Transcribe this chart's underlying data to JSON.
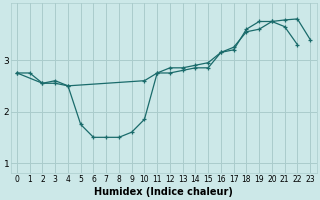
{
  "xlabel": "Humidex (Indice chaleur)",
  "background_color": "#cce8e8",
  "grid_color": "#aacccc",
  "line_color": "#1a6b6b",
  "xlim": [
    -0.5,
    23.5
  ],
  "ylim": [
    0.8,
    4.1
  ],
  "yticks": [
    1,
    2,
    3
  ],
  "xticks": [
    0,
    1,
    2,
    3,
    4,
    5,
    6,
    7,
    8,
    9,
    10,
    11,
    12,
    13,
    14,
    15,
    16,
    17,
    18,
    19,
    20,
    21,
    22,
    23
  ],
  "line1_x": [
    0,
    1,
    2,
    3,
    4,
    5,
    6,
    7,
    8,
    9,
    10,
    11,
    12,
    13,
    14,
    15,
    16,
    17,
    18,
    19,
    20,
    21,
    22
  ],
  "line1_y": [
    2.75,
    2.75,
    2.55,
    2.6,
    2.5,
    1.75,
    1.5,
    1.5,
    1.5,
    1.6,
    1.85,
    2.75,
    2.75,
    2.8,
    2.85,
    2.85,
    3.15,
    3.2,
    3.6,
    3.75,
    3.75,
    3.65,
    3.3
  ],
  "line2_x": [
    0,
    2,
    3,
    4,
    10,
    11,
    12,
    13,
    14,
    15,
    16,
    17,
    18,
    19,
    20,
    21,
    22,
    23
  ],
  "line2_y": [
    2.75,
    2.55,
    2.55,
    2.5,
    2.6,
    2.75,
    2.85,
    2.85,
    2.9,
    2.95,
    3.15,
    3.25,
    3.55,
    3.6,
    3.75,
    3.78,
    3.8,
    3.4
  ],
  "tick_fontsize": 5.5,
  "xlabel_fontsize": 7
}
